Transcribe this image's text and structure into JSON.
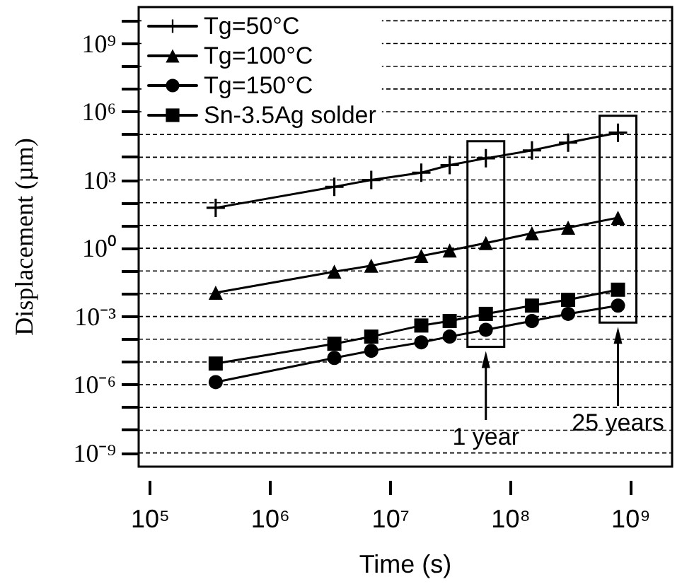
{
  "chart_data": {
    "type": "line",
    "xlabel": "Time (s)",
    "ylabel": "Displacement (µm)",
    "log": "xy",
    "grid": "y",
    "legend": "top left",
    "line_style": "solid",
    "x": [
      350000,
      3400000,
      6900000,
      18000000,
      31000000,
      62000000,
      150000000,
      300000000,
      780000000
    ],
    "xlim": [
      80000,
      2200000000
    ],
    "xticks": [
      {
        "value": 100000,
        "label": "10⁵"
      },
      {
        "value": 1000000,
        "label": "10⁶"
      },
      {
        "value": 10000000,
        "label": "10⁷"
      },
      {
        "value": 100000000,
        "label": "10⁸"
      },
      {
        "value": 1000000000,
        "label": "10⁹"
      }
    ],
    "ylim": [
      2.5e-10,
      40000000000.0
    ],
    "yticks": [
      {
        "value": 1e-09,
        "label": "10⁻⁹"
      },
      {
        "value": 1e-08,
        "label": null
      },
      {
        "value": 1e-07,
        "label": null
      },
      {
        "value": 1e-06,
        "label": "10⁻⁶"
      },
      {
        "value": 1e-05,
        "label": null
      },
      {
        "value": 0.0001,
        "label": null
      },
      {
        "value": 0.001,
        "label": "10⁻³"
      },
      {
        "value": 0.01,
        "label": null
      },
      {
        "value": 0.1,
        "label": null
      },
      {
        "value": 1,
        "label": "10⁰"
      },
      {
        "value": 10,
        "label": null
      },
      {
        "value": 100,
        "label": null
      },
      {
        "value": 1000,
        "label": "10³"
      },
      {
        "value": 10000,
        "label": null
      },
      {
        "value": 100000,
        "label": null
      },
      {
        "value": 1000000,
        "label": "10⁶"
      },
      {
        "value": 10000000,
        "label": null
      },
      {
        "value": 100000000,
        "label": null
      },
      {
        "value": 1000000000,
        "label": "10⁹"
      },
      {
        "value": 10000000000,
        "label": null
      }
    ],
    "series": [
      {
        "name": "Tg=50°C",
        "color": "#000000",
        "marker": "cross",
        "values": [
          60,
          500,
          1000,
          2100,
          4500,
          9000,
          20000,
          44000,
          120000
        ]
      },
      {
        "name": "Tg=100°C",
        "color": "#000000",
        "marker": "triangle",
        "values": [
          0.011,
          0.093,
          0.17,
          0.46,
          0.8,
          1.7,
          4.5,
          8,
          22
        ]
      },
      {
        "name": "Tg=150°C",
        "color": "#000000",
        "marker": "circle",
        "values": [
          1.3e-06,
          1.5e-05,
          3.1e-05,
          7.3e-05,
          0.00013,
          0.00026,
          0.00063,
          0.0013,
          0.003
        ]
      },
      {
        "name": "Sn-3.5Ag solder",
        "color": "#000000",
        "marker": "square",
        "values": [
          8.5e-06,
          6.3e-05,
          0.00013,
          0.0004,
          0.00063,
          0.0013,
          0.003,
          0.0054,
          0.015
        ]
      }
    ],
    "annotations": [
      "1 year",
      "25 years"
    ]
  }
}
